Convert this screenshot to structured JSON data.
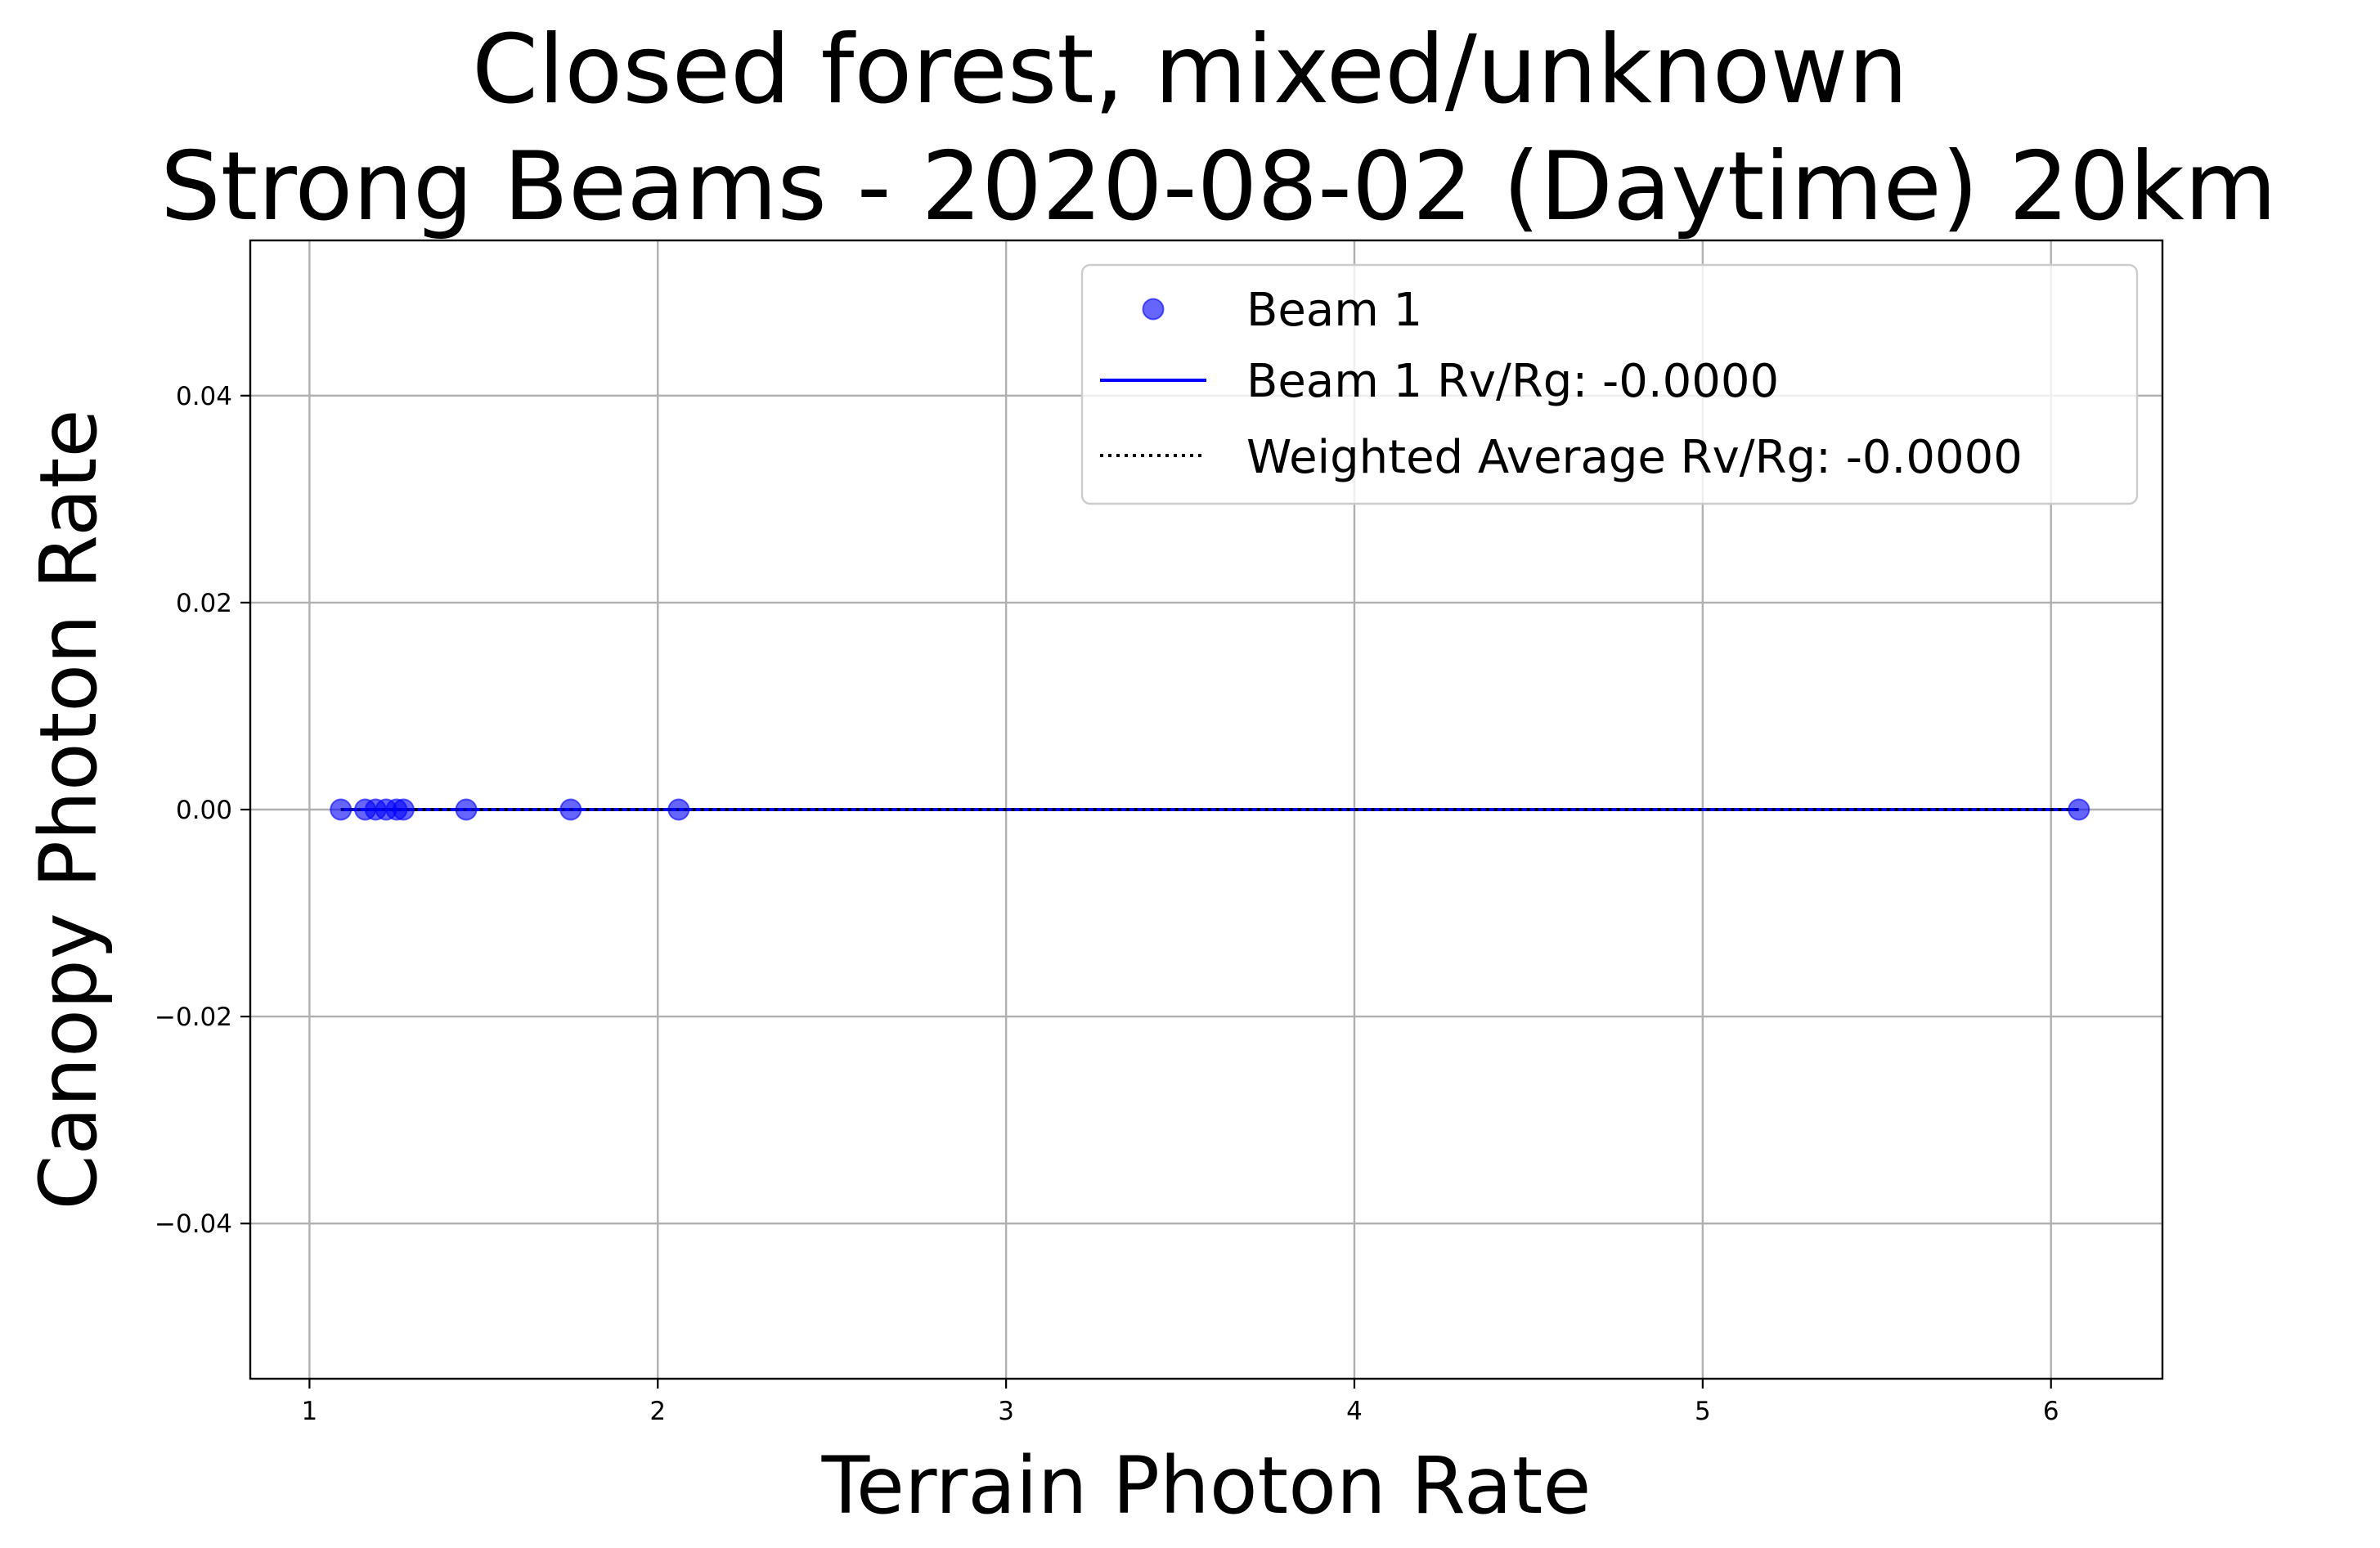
{
  "chart_data": {
    "type": "scatter",
    "title": "Closed forest, mixed/unknown\nStrong Beams - 2020-08-02 (Daytime) 20km",
    "title_lines": [
      "Closed forest, mixed/unknown",
      "Strong Beams - 2020-08-02 (Daytime) 20km"
    ],
    "xlabel": "Terrain Photon Rate",
    "ylabel": "Canopy Photon Rate",
    "xlim": [
      0.83,
      6.32
    ],
    "ylim": [
      -0.055,
      0.055
    ],
    "x_ticks": [
      1,
      2,
      3,
      4,
      5,
      6
    ],
    "x_tick_labels": [
      "1",
      "2",
      "3",
      "4",
      "5",
      "6"
    ],
    "y_ticks": [
      -0.04,
      -0.02,
      0.0,
      0.02,
      0.04
    ],
    "y_tick_labels": [
      "−0.04",
      "−0.02",
      "0.00",
      "0.02",
      "0.04"
    ],
    "grid": true,
    "legend_position": "upper right",
    "series": [
      {
        "name": "Beam 1",
        "kind": "scatter",
        "color": "#0000ff",
        "alpha": 0.6,
        "points": [
          {
            "x": 1.09,
            "y": 0.0
          },
          {
            "x": 1.16,
            "y": 0.0
          },
          {
            "x": 1.19,
            "y": 0.0
          },
          {
            "x": 1.22,
            "y": 0.0
          },
          {
            "x": 1.25,
            "y": 0.0
          },
          {
            "x": 1.27,
            "y": 0.0
          },
          {
            "x": 1.45,
            "y": 0.0
          },
          {
            "x": 1.75,
            "y": 0.0
          },
          {
            "x": 2.06,
            "y": 0.0
          },
          {
            "x": 6.08,
            "y": 0.0
          }
        ]
      },
      {
        "name": "Beam 1 Rv/Rg: -0.0000",
        "kind": "line",
        "style": "solid",
        "color": "#0000ff",
        "slope": -0.0,
        "x_range": [
          1.09,
          6.08
        ]
      },
      {
        "name": "Weighted Average Rv/Rg: -0.0000",
        "kind": "line",
        "style": "dotted",
        "color": "#000000",
        "slope": -0.0,
        "x_range": [
          1.09,
          6.08
        ]
      }
    ]
  }
}
